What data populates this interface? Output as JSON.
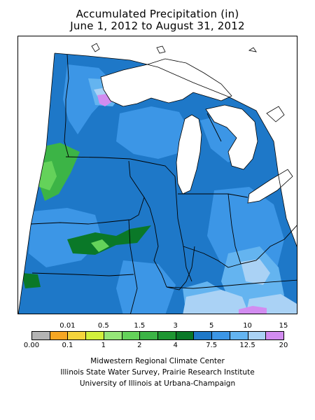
{
  "title": {
    "line1": "Accumulated Precipitation (in)",
    "line2": "June 1, 2012 to August 31, 2012"
  },
  "legend": {
    "colors": [
      "#b4b4b4",
      "#f5a623",
      "#f5d43c",
      "#d2f03c",
      "#96e678",
      "#64d25a",
      "#3cb446",
      "#1e9632",
      "#0a7828",
      "#1e78c8",
      "#3c96e6",
      "#64b4f0",
      "#aad2f5",
      "#d28cf0"
    ],
    "top_labels": [
      {
        "text": "0.01",
        "pos": 1
      },
      {
        "text": "0.5",
        "pos": 3
      },
      {
        "text": "1.5",
        "pos": 5
      },
      {
        "text": "3",
        "pos": 7
      },
      {
        "text": "5",
        "pos": 9
      },
      {
        "text": "10",
        "pos": 11
      },
      {
        "text": "15",
        "pos": 13
      }
    ],
    "bottom_labels": [
      {
        "text": "0.00",
        "pos": 0
      },
      {
        "text": "0.1",
        "pos": 2
      },
      {
        "text": "1",
        "pos": 4
      },
      {
        "text": "2",
        "pos": 6
      },
      {
        "text": "4",
        "pos": 8
      },
      {
        "text": "7.5",
        "pos": 10
      },
      {
        "text": "12.5",
        "pos": 12
      },
      {
        "text": "20",
        "pos": 14
      }
    ]
  },
  "credits": {
    "line1": "Midwestern Regional Climate Center",
    "line2": "Illinois State Water Survey, Prairie Research Institute",
    "line3": "University of Illinois at Urbana-Champaign"
  },
  "map_colors": {
    "base": "#1e78c8",
    "light": "#3c96e6",
    "pale": "#64b4f0",
    "very_pale": "#aad2f5",
    "purple": "#d28cf0",
    "green_mid": "#64d25a",
    "green_dark": "#3cb446",
    "green_darker": "#1e9632",
    "green_deep": "#0a7828",
    "lake": "#ffffff"
  }
}
